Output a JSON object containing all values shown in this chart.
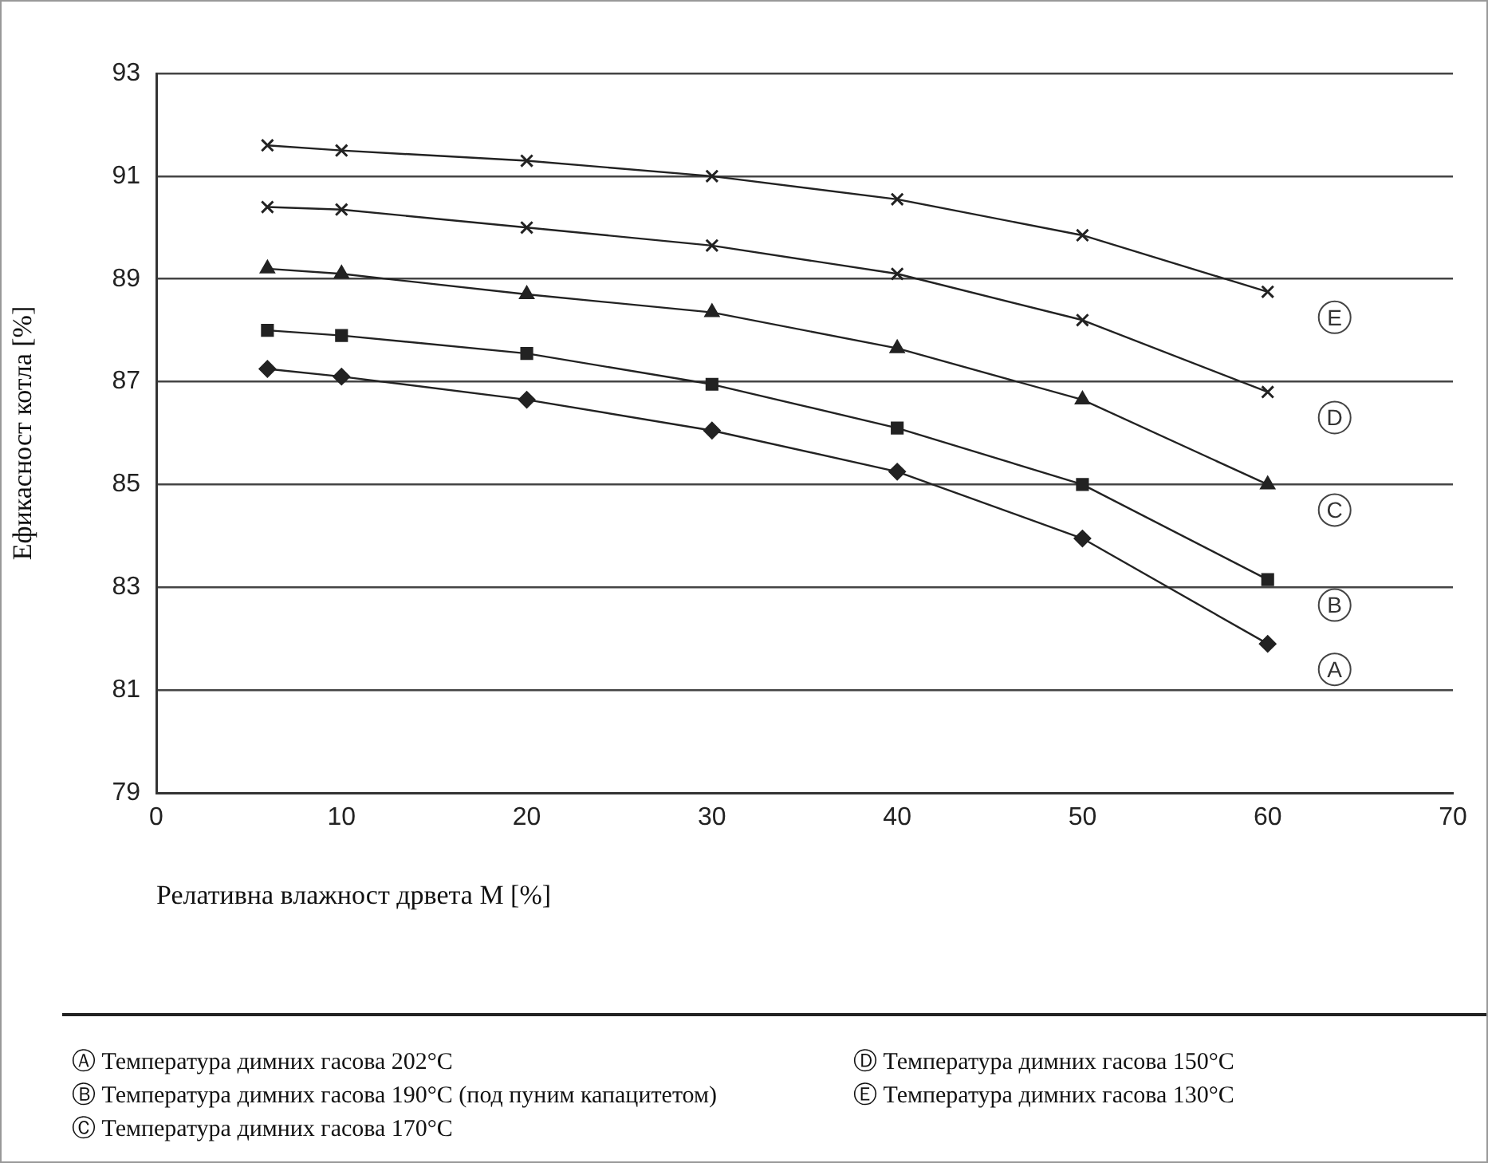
{
  "chart_data": {
    "type": "line",
    "xlabel": "Релативна влажност дрвета M [%]",
    "ylabel": "Ефикасност котла [%]",
    "x": [
      6,
      10,
      20,
      30,
      40,
      50,
      60
    ],
    "xlim": [
      0,
      70
    ],
    "xticks": [
      0,
      10,
      20,
      30,
      40,
      50,
      60,
      70
    ],
    "ylim": [
      79,
      93
    ],
    "yticks": [
      79,
      81,
      83,
      85,
      87,
      89,
      91,
      93
    ],
    "grid": "y",
    "legend": false,
    "series": [
      {
        "name": "A",
        "color": "#222222",
        "marker": "diamond",
        "values": [
          87.25,
          87.1,
          86.65,
          86.05,
          85.25,
          83.95,
          81.9
        ]
      },
      {
        "name": "B",
        "color": "#222222",
        "marker": "square",
        "values": [
          88.0,
          87.9,
          87.55,
          86.95,
          86.1,
          85.0,
          83.15
        ]
      },
      {
        "name": "C",
        "color": "#222222",
        "marker": "triangle",
        "values": [
          89.2,
          89.1,
          88.7,
          88.35,
          87.65,
          86.65,
          85.0
        ]
      },
      {
        "name": "D",
        "color": "#222222",
        "marker": "cross",
        "values": [
          90.4,
          90.35,
          90.0,
          89.65,
          89.1,
          88.2,
          86.8
        ]
      },
      {
        "name": "E",
        "color": "#222222",
        "marker": "cross",
        "values": [
          91.6,
          91.5,
          91.3,
          91.0,
          90.55,
          89.85,
          88.75
        ]
      }
    ],
    "annotations": [
      "Ⓐ Температура димних гасова 202°C",
      "Ⓑ Температура димних гасова 190°C (под пуним капацитетом)",
      "Ⓒ Температура димних гасова 170°C",
      "Ⓓ Температура димних гасова 150°C",
      "Ⓔ Температура димних гасова 130°C"
    ]
  }
}
